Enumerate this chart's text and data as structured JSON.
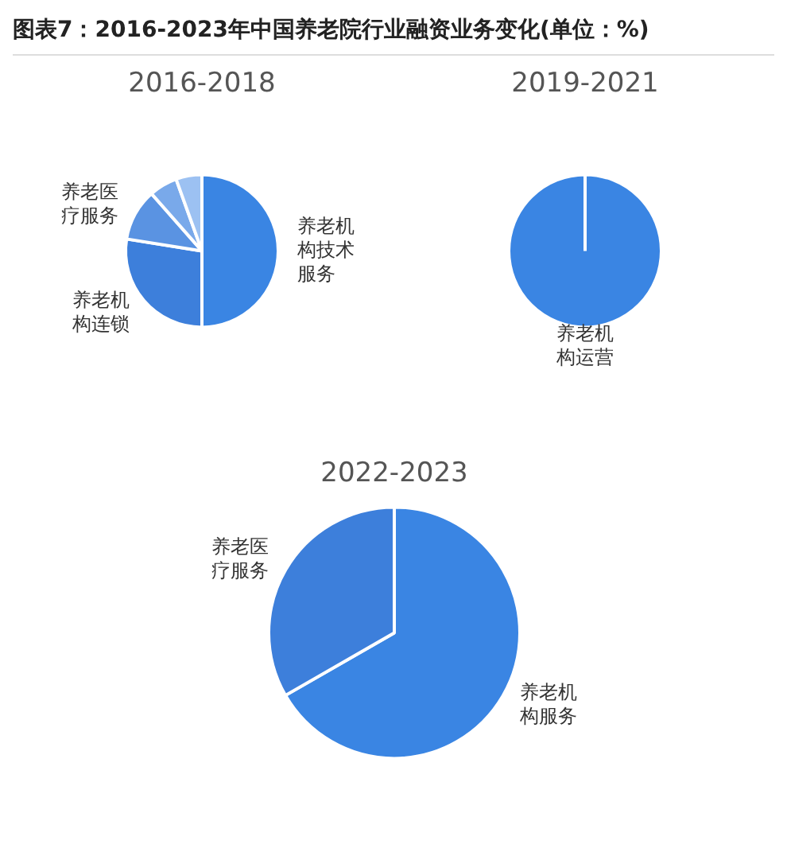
{
  "chart_data": [
    {
      "type": "pie",
      "title": "图表7：2016-2023年中国养老院行业融资业务变化(单位：%)",
      "subtitle": "2016-2018",
      "categories": [
        "养老机构技术服务",
        "养老机构连锁",
        "养老医疗服务",
        null,
        null
      ],
      "values": [
        50,
        27.5,
        11,
        6,
        5.5
      ],
      "colors": [
        "#3a85e3",
        "#3d7fdb",
        "#5a93e2",
        "#79a9ea",
        "#9cc1f2"
      ],
      "legend": false
    },
    {
      "type": "pie",
      "subtitle": "2019-2021",
      "categories": [
        "养老机构运营"
      ],
      "values": [
        100
      ],
      "colors": [
        "#3a85e3"
      ],
      "legend": false
    },
    {
      "type": "pie",
      "subtitle": "2022-2023",
      "categories": [
        "养老机构服务",
        "养老医疗服务"
      ],
      "values": [
        66.7,
        33.3
      ],
      "colors": [
        "#3a85e3",
        "#3d7fdb"
      ],
      "legend": false
    }
  ]
}
